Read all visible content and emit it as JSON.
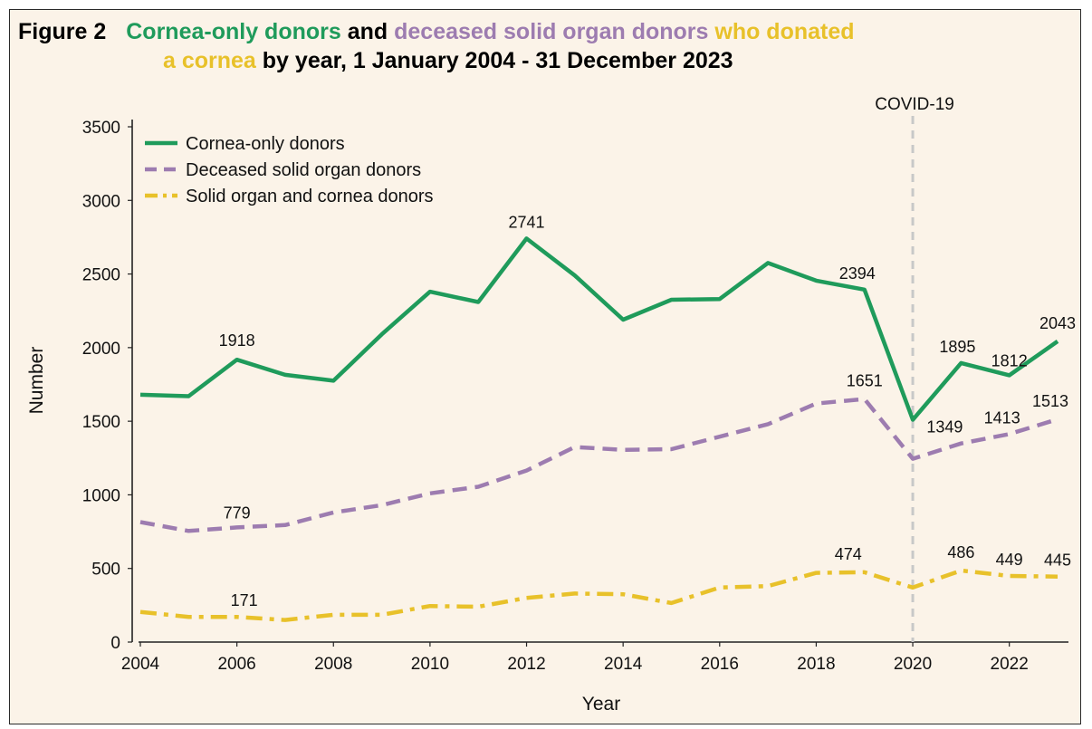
{
  "title": {
    "label": "Figure 2",
    "part1": "Cornea-only donors",
    "part2": " and ",
    "part3": "deceased solid organ donors",
    "part4": " who donated",
    "part5": "a cornea",
    "part6": " by year, 1 January 2004 - 31 December 2023"
  },
  "colors": {
    "cornea": "#1f9b5b",
    "organ": "#9d7cb0",
    "both": "#e8c12a",
    "covid_line": "#c8c8c8"
  },
  "chart_data": {
    "type": "line",
    "xlabel": "Year",
    "ylabel": "Number",
    "xlim": [
      2004,
      2023
    ],
    "ylim": [
      0,
      3500
    ],
    "x_ticks": [
      2004,
      2006,
      2008,
      2010,
      2012,
      2014,
      2016,
      2018,
      2020,
      2022
    ],
    "y_ticks": [
      0,
      500,
      1000,
      1500,
      2000,
      2500,
      3000,
      3500
    ],
    "grid": false,
    "legend_position": "top-left",
    "annotation": {
      "x": 2020,
      "label": "COVID-19"
    },
    "x": [
      2004,
      2005,
      2006,
      2007,
      2008,
      2009,
      2010,
      2011,
      2012,
      2013,
      2014,
      2015,
      2016,
      2017,
      2018,
      2019,
      2020,
      2021,
      2022,
      2023
    ],
    "series": [
      {
        "name": "Cornea-only donors",
        "style": "solid",
        "color": "#1f9b5b",
        "values": [
          1680,
          1670,
          1918,
          1815,
          1775,
          2090,
          2380,
          2310,
          2741,
          2490,
          2190,
          2325,
          2330,
          2575,
          2455,
          2394,
          1510,
          1895,
          1812,
          2043
        ],
        "labels": [
          {
            "x": 2006,
            "text": "1918"
          },
          {
            "x": 2012,
            "text": "2741"
          },
          {
            "x": 2019,
            "text": "2394"
          },
          {
            "x": 2021,
            "text": "1895"
          },
          {
            "x": 2022,
            "text": "1812"
          },
          {
            "x": 2023,
            "text": "2043"
          }
        ]
      },
      {
        "name": "Deceased solid organ donors",
        "style": "dashed",
        "color": "#9d7cb0",
        "values": [
          815,
          755,
          779,
          795,
          880,
          930,
          1010,
          1055,
          1165,
          1325,
          1305,
          1310,
          1395,
          1480,
          1620,
          1651,
          1245,
          1349,
          1413,
          1513
        ],
        "labels": [
          {
            "x": 2006,
            "text": "779"
          },
          {
            "x": 2019,
            "text": "1651"
          },
          {
            "x": 2021,
            "text": "1349"
          },
          {
            "x": 2022,
            "text": "1413"
          },
          {
            "x": 2023,
            "text": "1513"
          }
        ]
      },
      {
        "name": "Solid organ and cornea donors",
        "style": "dashdot",
        "color": "#e8c12a",
        "values": [
          205,
          171,
          171,
          150,
          185,
          185,
          245,
          240,
          300,
          330,
          325,
          265,
          370,
          380,
          470,
          474,
          370,
          486,
          449,
          445
        ],
        "labels": [
          {
            "x": 2006,
            "text": "171"
          },
          {
            "x": 2019,
            "text": "474"
          },
          {
            "x": 2021,
            "text": "486"
          },
          {
            "x": 2022,
            "text": "449"
          },
          {
            "x": 2023,
            "text": "445"
          }
        ]
      }
    ]
  }
}
